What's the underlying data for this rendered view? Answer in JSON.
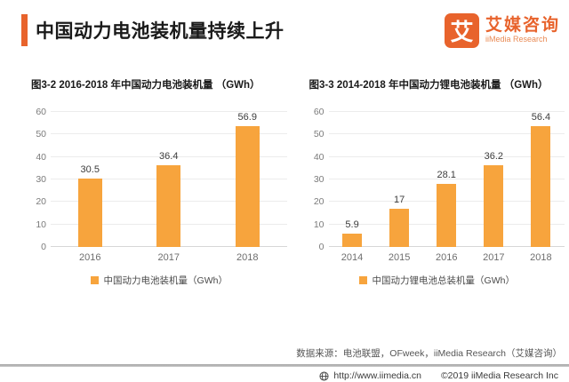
{
  "header": {
    "title": "中国动力电池装机量持续上升",
    "logo": {
      "mark": "艾",
      "name_cn": "艾媒咨询",
      "name_en": "iiMedia Research"
    }
  },
  "chart_data": [
    {
      "type": "bar",
      "title": "图3-2 2016-2018 年中国动力电池装机量 （GWh）",
      "categories": [
        "2016",
        "2017",
        "2018"
      ],
      "values": [
        30.5,
        36.4,
        56.9
      ],
      "legend": "中国动力电池装机量（GWh）",
      "xlabel": "",
      "ylabel": "",
      "ylim": [
        0,
        60
      ],
      "ytick_step": 10,
      "grid": true,
      "legend_position": "bottom",
      "bar_color": "#F7A43D"
    },
    {
      "type": "bar",
      "title": "图3-3 2014-2018 年中国动力锂电池装机量 （GWh）",
      "categories": [
        "2014",
        "2015",
        "2016",
        "2017",
        "2018"
      ],
      "values": [
        5.9,
        17,
        28.1,
        36.2,
        56.4
      ],
      "legend": "中国动力锂电池总装机量（GWh）",
      "xlabel": "",
      "ylabel": "",
      "ylim": [
        0,
        60
      ],
      "ytick_step": 10,
      "grid": true,
      "legend_position": "bottom",
      "bar_color": "#F7A43D"
    }
  ],
  "source_note": "数据来源：电池联盟，OFweek，iiMedia Research（艾媒咨询）",
  "footer": {
    "url": "http://www.iimedia.cn",
    "copyright": "©2019  iiMedia Research  Inc"
  },
  "colors": {
    "accent": "#E8632C",
    "bar": "#F7A43D"
  }
}
